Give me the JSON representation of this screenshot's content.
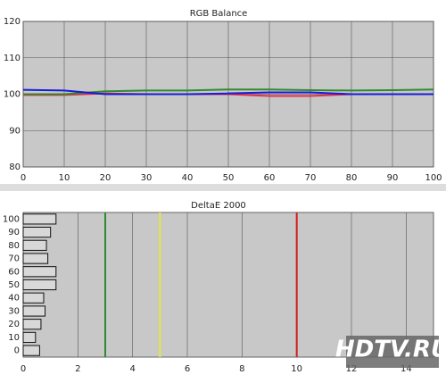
{
  "chart_data": [
    {
      "type": "line",
      "title": "RGB Balance",
      "x": [
        0,
        10,
        20,
        30,
        40,
        50,
        60,
        70,
        80,
        90,
        100
      ],
      "series": [
        {
          "name": "Red",
          "color": "#e0304a",
          "values": [
            99.8,
            99.8,
            100.2,
            100,
            100,
            100,
            99.5,
            99.5,
            100,
            100,
            100
          ]
        },
        {
          "name": "Green",
          "color": "#2e8b2e",
          "values": [
            100,
            100,
            100.8,
            101,
            101,
            101.3,
            101.3,
            101.1,
            101,
            101.1,
            101.3
          ]
        },
        {
          "name": "Blue",
          "color": "#1a1adc",
          "values": [
            101.2,
            101,
            100,
            100,
            100,
            100.2,
            100.5,
            100.5,
            100,
            100,
            100
          ]
        }
      ],
      "xlim": [
        0,
        100
      ],
      "xticks": [
        0,
        10,
        20,
        30,
        40,
        50,
        60,
        70,
        80,
        90,
        100
      ],
      "ylim": [
        80,
        120
      ],
      "yticks": [
        80,
        90,
        100,
        110,
        120
      ],
      "grid": true
    },
    {
      "type": "bar",
      "orientation": "horizontal",
      "title": "DeltaE 2000",
      "categories": [
        "100",
        "90",
        "80",
        "70",
        "60",
        "50",
        "40",
        "30",
        "20",
        "10",
        "0"
      ],
      "values": [
        1.2,
        1.0,
        0.85,
        0.9,
        1.2,
        1.2,
        0.75,
        0.8,
        0.65,
        0.45,
        0.6
      ],
      "color": "#d8d8d8",
      "xlim": [
        0,
        15
      ],
      "xticks": [
        0,
        2,
        4,
        6,
        8,
        10,
        12,
        14
      ],
      "grid": true,
      "reference_lines": [
        {
          "value": 3,
          "color": "#2e8b2e"
        },
        {
          "value": 5,
          "color": "#e8e840"
        },
        {
          "value": 10,
          "color": "#d02020"
        }
      ],
      "watermark": "HDTV.RU"
    }
  ]
}
